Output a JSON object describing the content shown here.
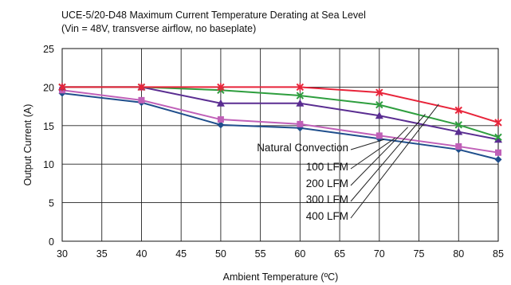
{
  "chart_data": {
    "type": "line",
    "title": "UCE-5/20-D48 Maximum Current Temperature Derating at Sea Level",
    "subtitle": "(Vin = 48V, transverse airflow, no baseplate)",
    "xlabel": "Ambient Temperature (ºC)",
    "ylabel": "Output Current (A)",
    "xlim": [
      30,
      85
    ],
    "ylim": [
      0,
      25
    ],
    "xticks": [
      30,
      35,
      40,
      45,
      50,
      55,
      60,
      65,
      70,
      75,
      80,
      85
    ],
    "yticks": [
      0,
      5,
      10,
      15,
      20,
      25
    ],
    "grid": true,
    "legend_position": "callout lines, center-right",
    "x": [
      30,
      40,
      50,
      60,
      70,
      80,
      85
    ],
    "series": [
      {
        "name": "Natural Convection",
        "color": "#1f4e8c",
        "marker": "diamond",
        "values": [
          19.2,
          18.0,
          15.1,
          14.7,
          13.3,
          11.9,
          10.6
        ]
      },
      {
        "name": "100 LFM",
        "color": "#c060b8",
        "marker": "square",
        "values": [
          19.6,
          18.3,
          15.8,
          15.2,
          13.7,
          12.3,
          11.5
        ]
      },
      {
        "name": "200 LFM",
        "color": "#5a2d91",
        "marker": "triangle",
        "values": [
          20.0,
          20.0,
          17.9,
          17.9,
          16.3,
          14.2,
          13.2
        ]
      },
      {
        "name": "300 LFM",
        "color": "#2e9e3e",
        "marker": "x",
        "values": [
          20.0,
          20.0,
          19.6,
          18.9,
          17.7,
          15.1,
          13.5
        ]
      },
      {
        "name": "400 LFM",
        "color": "#e8243a",
        "marker": "star",
        "values": [
          20.0,
          20.0,
          20.0,
          20.0,
          19.3,
          17.0,
          15.4
        ]
      }
    ]
  }
}
